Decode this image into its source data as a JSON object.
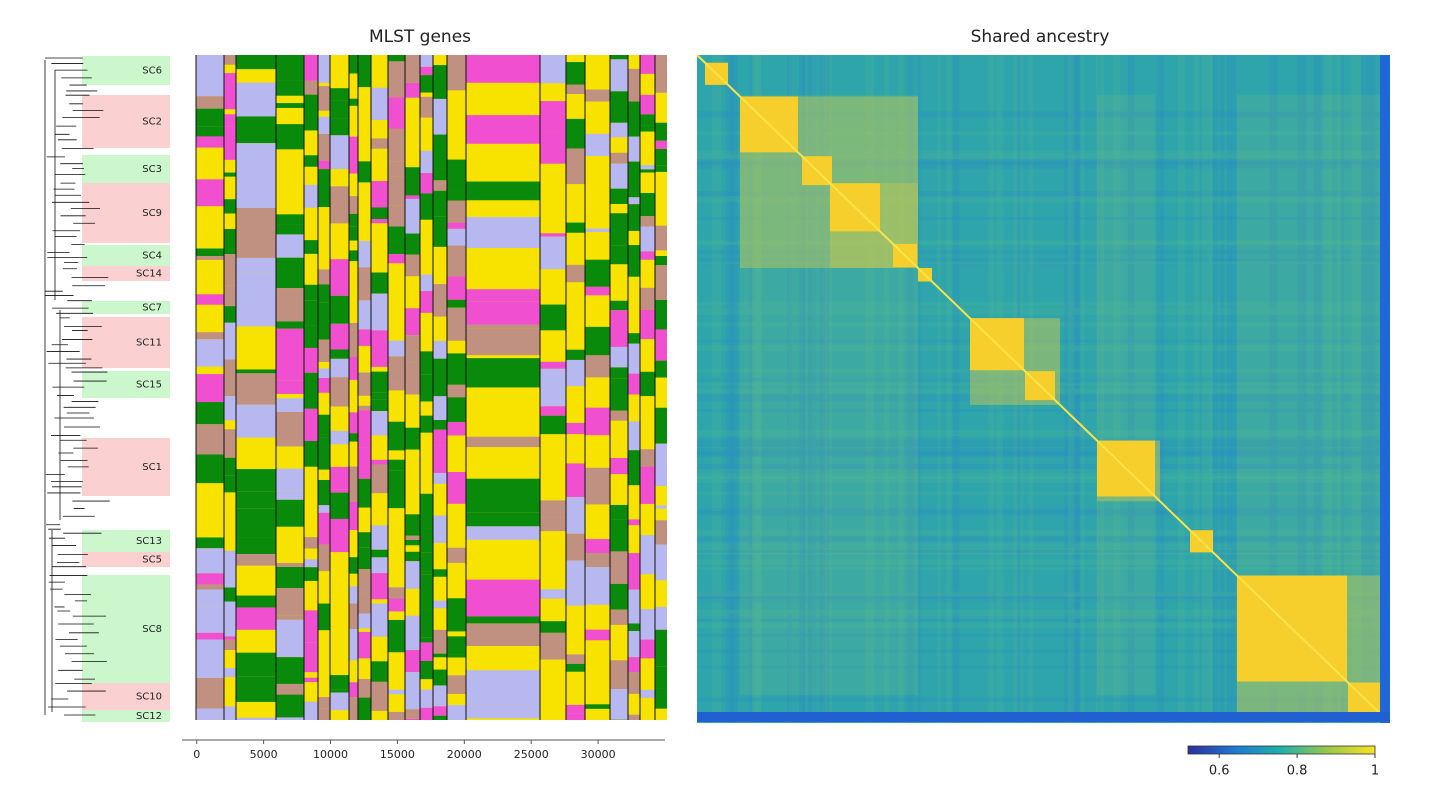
{
  "chart_data": [
    {
      "type": "genes",
      "title": "MLST genes",
      "clades": [
        "SC6",
        "SC2",
        "SC3",
        "SC9",
        "SC4",
        "SC14",
        "SC7",
        "SC11",
        "SC15",
        "SC1",
        "SC13",
        "SC5",
        "SC8",
        "SC10",
        "SC12"
      ],
      "xlim": [
        -1100,
        35000
      ],
      "xticks": [
        0,
        5000,
        10000,
        15000,
        20000,
        25000,
        30000
      ]
    },
    {
      "type": "heatmap",
      "title": "Shared ancestry",
      "clim": [
        0.52,
        1
      ],
      "cticks": [
        0.6,
        0.8,
        1
      ]
    }
  ]
}
